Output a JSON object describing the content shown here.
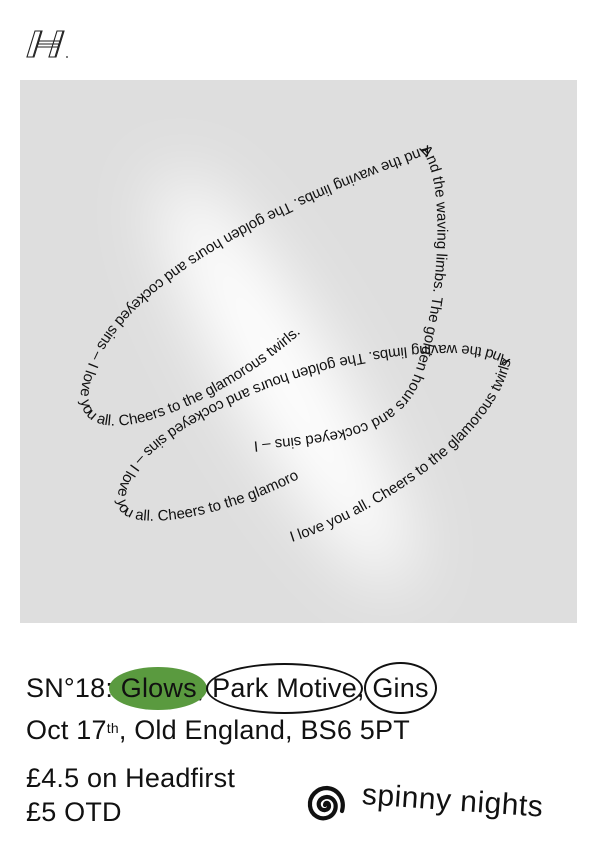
{
  "logo_icon": "venue-h-logo-icon",
  "artwork": {
    "loop_text_a": "And the waving limbs. The golden hours and cockeyed sins – I love you all. Cheers to the glamorous twirls.",
    "loop_text_b": "And the waving limbs. The golden hours and cockeyed sins – I love you all. Cheers to the glamorous twirls.",
    "loop_text_c": "And the waving limbs. The golden hours and cockeyed sins – I love you all. Cheers to the glamorous twirls.",
    "loop_text_d": "I love you all. Cheers to the glamorous twirls."
  },
  "event": {
    "prefix": "SN°18: ",
    "artist_1": "Glows",
    "sep_1": ", ",
    "artist_2": "Park Motive",
    "sep_2": ", ",
    "artist_3": "Gins",
    "date_day": "Oct 17",
    "date_suffix": "th",
    "venue": ", Old England, BS6 5PT",
    "price_advance": "£4.5 on Headfirst",
    "price_door": "£5 OTD"
  },
  "brand": {
    "name": "spinny nights",
    "icon": "spiral-icon"
  },
  "colors": {
    "highlight_green": "#5a9a3f",
    "artwork_bg": "#dedede",
    "text": "#111111"
  }
}
